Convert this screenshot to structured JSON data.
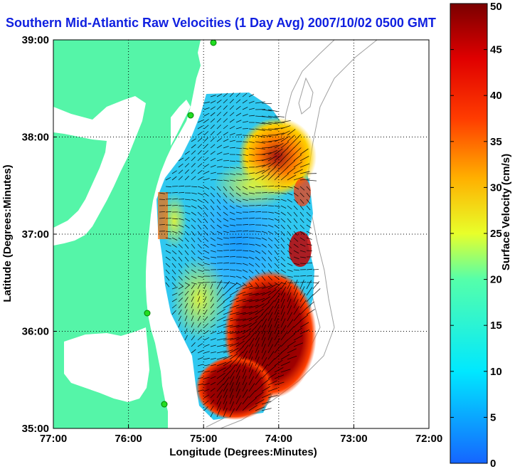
{
  "chart_data": {
    "type": "heatmap",
    "title": "Southern Mid-Atlantic Raw Velocities (1 Day Avg) 2007/10/02 0500 GMT",
    "xlabel": "Longitude (Degrees:Minutes)",
    "ylabel": "Latitude (Degrees:Minutes)",
    "x_ticks": [
      "77:00",
      "76:00",
      "75:00",
      "74:00",
      "73:00",
      "72:00"
    ],
    "y_ticks": [
      "39:00",
      "38:00",
      "37:00",
      "36:00",
      "35:00"
    ],
    "x_range": [
      -77,
      -72
    ],
    "y_range": [
      35,
      39
    ],
    "grid": true,
    "colorbar": {
      "label": "Surface Velocity (cm/s)",
      "range": [
        0,
        50
      ],
      "ticks": [
        "0",
        "5",
        "10",
        "15",
        "20",
        "25",
        "30",
        "35",
        "40",
        "45",
        "50"
      ]
    },
    "colors": {
      "land": "#55f5a8",
      "title": "#1020e0",
      "arrows": "#000000",
      "bathymetry": "#a0a0a0"
    }
  }
}
